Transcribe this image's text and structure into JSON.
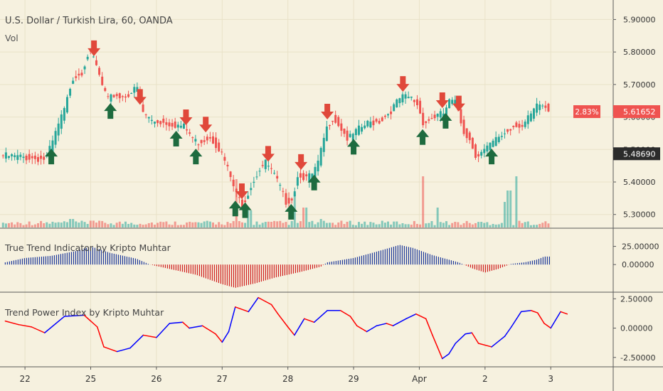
{
  "chart_data": [
    {
      "type": "candlestick",
      "title": "U.S. Dollar / Turkish Lira, 60, OANDA",
      "volume_label": "Vol",
      "y_ticks": [
        5.3,
        5.4,
        5.5,
        5.6,
        5.7,
        5.8,
        5.9
      ],
      "y_tick_labels": [
        "5.30000",
        "5.40000",
        "5.50000",
        "5.60000",
        "5.70000",
        "5.80000",
        "5.90000"
      ],
      "ylim": [
        5.26,
        5.96
      ],
      "last_price": 5.61652,
      "last_price_label": "5.61652",
      "change_label": "2.83%",
      "ref_price": 5.4869,
      "ref_price_label": "5.48690",
      "close_path": [
        [
          21.7,
          5.48
        ],
        [
          22.3,
          5.47
        ],
        [
          22.4,
          5.52
        ],
        [
          22.5,
          5.58
        ],
        [
          22.6,
          5.63
        ],
        [
          22.7,
          5.72
        ],
        [
          22.85,
          5.74
        ],
        [
          22.95,
          5.8
        ],
        [
          23.05,
          5.77
        ],
        [
          23.15,
          5.7
        ],
        [
          23.25,
          5.65
        ],
        [
          23.35,
          5.67
        ],
        [
          23.45,
          5.66
        ],
        [
          23.55,
          5.67
        ],
        [
          23.7,
          5.69
        ],
        [
          23.75,
          5.62
        ],
        [
          23.9,
          5.59
        ],
        [
          24.2,
          5.58
        ],
        [
          24.4,
          5.57
        ],
        [
          24.6,
          5.52
        ],
        [
          24.8,
          5.54
        ],
        [
          24.95,
          5.5
        ],
        [
          25.05,
          5.45
        ],
        [
          25.2,
          5.36
        ],
        [
          25.3,
          5.33
        ],
        [
          25.4,
          5.38
        ],
        [
          25.55,
          5.44
        ],
        [
          25.65,
          5.46
        ],
        [
          25.75,
          5.43
        ],
        [
          25.85,
          5.39
        ],
        [
          25.95,
          5.34
        ],
        [
          26.05,
          5.35
        ],
        [
          26.15,
          5.43
        ],
        [
          26.25,
          5.41
        ],
        [
          26.35,
          5.42
        ],
        [
          26.45,
          5.46
        ],
        [
          26.55,
          5.55
        ],
        [
          26.65,
          5.6
        ],
        [
          26.75,
          5.58
        ],
        [
          26.9,
          5.53
        ],
        [
          27.05,
          5.56
        ],
        [
          27.2,
          5.58
        ],
        [
          27.4,
          5.59
        ],
        [
          27.55,
          5.62
        ],
        [
          27.7,
          5.66
        ],
        [
          27.85,
          5.66
        ],
        [
          27.95,
          5.64
        ],
        [
          28.05,
          5.58
        ],
        [
          28.2,
          5.6
        ],
        [
          28.35,
          5.61
        ],
        [
          28.45,
          5.65
        ],
        [
          28.55,
          5.64
        ],
        [
          28.65,
          5.56
        ],
        [
          28.75,
          5.53
        ],
        [
          28.85,
          5.48
        ],
        [
          29.0,
          5.5
        ],
        [
          29.1,
          5.52
        ],
        [
          29.2,
          5.54
        ],
        [
          29.35,
          5.56
        ],
        [
          29.45,
          5.58
        ],
        [
          29.55,
          5.57
        ],
        [
          29.7,
          5.61
        ],
        [
          29.8,
          5.64
        ],
        [
          29.9,
          5.63
        ],
        [
          30.0,
          5.61
        ]
      ],
      "volume": [
        [
          22.7,
          0.15
        ],
        [
          23.0,
          0.12
        ],
        [
          24.05,
          0.1
        ],
        [
          25.2,
          0.85
        ],
        [
          25.4,
          0.3
        ],
        [
          26.1,
          0.6
        ],
        [
          26.25,
          0.35
        ],
        [
          26.5,
          0.15
        ],
        [
          27.1,
          0.05
        ],
        [
          28.05,
          0.9
        ],
        [
          28.25,
          0.35
        ],
        [
          29.3,
          0.45
        ],
        [
          29.35,
          0.65
        ],
        [
          29.45,
          0.9
        ]
      ],
      "buy_signals": [
        22.4,
        23.3,
        24.3,
        24.6,
        25.2,
        25.35,
        26.05,
        26.4,
        27.0,
        28.05,
        28.4,
        29.1
      ],
      "sell_signals": [
        23.05,
        23.75,
        24.45,
        24.75,
        25.3,
        25.7,
        26.2,
        26.6,
        27.75,
        28.35,
        28.6
      ]
    },
    {
      "type": "histogram",
      "title": "True Trend Indicator by Kripto Muhtar",
      "y_ticks": [
        25,
        0
      ],
      "y_tick_labels": [
        "25.00000",
        "0.00000"
      ],
      "ylim": [
        -37,
        49
      ],
      "points": [
        [
          21.7,
          3
        ],
        [
          22.0,
          9
        ],
        [
          22.4,
          12
        ],
        [
          22.8,
          19
        ],
        [
          23.0,
          25
        ],
        [
          23.3,
          16
        ],
        [
          23.7,
          8
        ],
        [
          23.9,
          0
        ],
        [
          24.2,
          -6
        ],
        [
          24.6,
          -14
        ],
        [
          25.0,
          -27
        ],
        [
          25.2,
          -32
        ],
        [
          25.5,
          -26
        ],
        [
          25.8,
          -18
        ],
        [
          26.2,
          -10
        ],
        [
          26.5,
          -3
        ],
        [
          26.6,
          3
        ],
        [
          27.0,
          9
        ],
        [
          27.4,
          19
        ],
        [
          27.7,
          27
        ],
        [
          27.9,
          23
        ],
        [
          28.2,
          13
        ],
        [
          28.6,
          3
        ],
        [
          28.8,
          -5
        ],
        [
          29.0,
          -11
        ],
        [
          29.2,
          -6
        ],
        [
          29.4,
          1
        ],
        [
          29.6,
          3
        ],
        [
          29.8,
          7
        ],
        [
          29.9,
          11
        ]
      ]
    },
    {
      "type": "line",
      "title": "Trend Power Index by Kripto Muhtar",
      "y_ticks": [
        2.5,
        0,
        -2.5
      ],
      "y_tick_labels": [
        "2.50000",
        "0.00000",
        "-2.50000"
      ],
      "ylim": [
        -3.3,
        3.0
      ],
      "up_color": "#0000ff",
      "down_color": "#ff0000",
      "points": [
        [
          21.7,
          0.6
        ],
        [
          21.9,
          0.3
        ],
        [
          22.1,
          0.1
        ],
        [
          22.3,
          -0.4
        ],
        [
          22.6,
          1.0
        ],
        [
          22.9,
          1.1
        ],
        [
          23.1,
          0.1
        ],
        [
          23.2,
          -1.6
        ],
        [
          23.4,
          -2.0
        ],
        [
          23.6,
          -1.7
        ],
        [
          23.8,
          -0.6
        ],
        [
          24.0,
          -0.8
        ],
        [
          24.2,
          0.4
        ],
        [
          24.4,
          0.5
        ],
        [
          24.5,
          0.0
        ],
        [
          24.7,
          0.2
        ],
        [
          24.9,
          -0.5
        ],
        [
          25.0,
          -1.2
        ],
        [
          25.1,
          -0.3
        ],
        [
          25.2,
          1.8
        ],
        [
          25.4,
          1.4
        ],
        [
          25.55,
          2.6
        ],
        [
          25.75,
          2.0
        ],
        [
          25.85,
          1.2
        ],
        [
          26.0,
          0.1
        ],
        [
          26.1,
          -0.6
        ],
        [
          26.25,
          0.8
        ],
        [
          26.4,
          0.5
        ],
        [
          26.6,
          1.5
        ],
        [
          26.8,
          1.5
        ],
        [
          26.95,
          1.0
        ],
        [
          27.05,
          0.2
        ],
        [
          27.2,
          -0.3
        ],
        [
          27.35,
          0.2
        ],
        [
          27.5,
          0.4
        ],
        [
          27.6,
          0.2
        ],
        [
          27.8,
          0.8
        ],
        [
          27.95,
          1.2
        ],
        [
          28.1,
          0.8
        ],
        [
          28.2,
          -0.6
        ],
        [
          28.35,
          -2.6
        ],
        [
          28.45,
          -2.2
        ],
        [
          28.55,
          -1.3
        ],
        [
          28.7,
          -0.5
        ],
        [
          28.8,
          -0.4
        ],
        [
          28.9,
          -1.3
        ],
        [
          29.1,
          -1.6
        ],
        [
          29.3,
          -0.7
        ],
        [
          29.4,
          0.1
        ],
        [
          29.55,
          1.4
        ],
        [
          29.7,
          1.5
        ],
        [
          29.8,
          1.3
        ],
        [
          29.9,
          0.4
        ],
        [
          30.0,
          0.0
        ],
        [
          30.15,
          1.4
        ],
        [
          30.25,
          1.2
        ]
      ]
    }
  ],
  "x_axis": {
    "labels": [
      {
        "x": 22,
        "text": "22"
      },
      {
        "x": 23,
        "text": "25"
      },
      {
        "x": 24,
        "text": "26"
      },
      {
        "x": 25,
        "text": "27"
      },
      {
        "x": 26,
        "text": "28"
      },
      {
        "x": 27,
        "text": "29"
      },
      {
        "x": 28,
        "text": "Apr"
      },
      {
        "x": 29,
        "text": "2"
      },
      {
        "x": 30,
        "text": "3"
      }
    ],
    "xlim": [
      21.62,
      30.95
    ]
  },
  "colors": {
    "background": "#f6f1df",
    "up": "#26a69a",
    "down": "#ef5350",
    "buy_arrow": "#1e6b3f",
    "sell_arrow": "#e0483a",
    "hist_pos": "#1f3a9b",
    "hist_neg": "#d02020",
    "axis_text": "#333333",
    "grid": "#e9e2c8",
    "divider": "#5a5a5a"
  }
}
